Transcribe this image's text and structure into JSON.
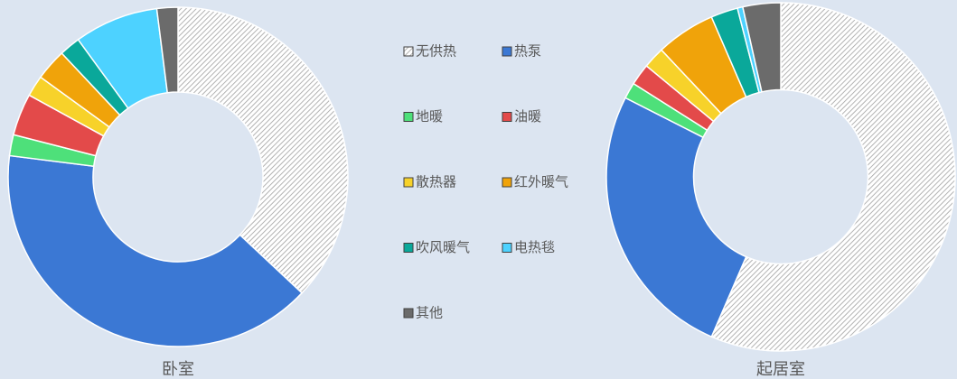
{
  "chart_data": [
    {
      "type": "pie",
      "title": "卧室",
      "hole": 0.5,
      "hatch_index": 0,
      "categories": [
        "无供热",
        "热泵",
        "地暖",
        "油暖",
        "散热器",
        "红外暖气",
        "吹风暖气",
        "电热毯",
        "其他"
      ],
      "values": [
        37,
        40,
        2,
        4,
        2,
        3,
        2,
        8,
        2
      ],
      "colors": [
        "#ffffff",
        "#3b78d4",
        "#4ee07a",
        "#e34a4a",
        "#f7d22a",
        "#f0a30a",
        "#0aa89a",
        "#4dd2ff",
        "#6b6b6b"
      ]
    },
    {
      "type": "pie",
      "title": "起居室",
      "hole": 0.5,
      "hatch_index": 0,
      "categories": [
        "无供热",
        "热泵",
        "地暖",
        "油暖",
        "散热器",
        "红外暖气",
        "吹风暖气",
        "电热毯",
        "其他"
      ],
      "values": [
        56.5,
        26,
        1.5,
        2,
        2,
        5.5,
        2.5,
        0.5,
        3.5
      ],
      "colors": [
        "#ffffff",
        "#3b78d4",
        "#4ee07a",
        "#e34a4a",
        "#f7d22a",
        "#f0a30a",
        "#0aa89a",
        "#4dd2ff",
        "#6b6b6b"
      ]
    }
  ]
}
